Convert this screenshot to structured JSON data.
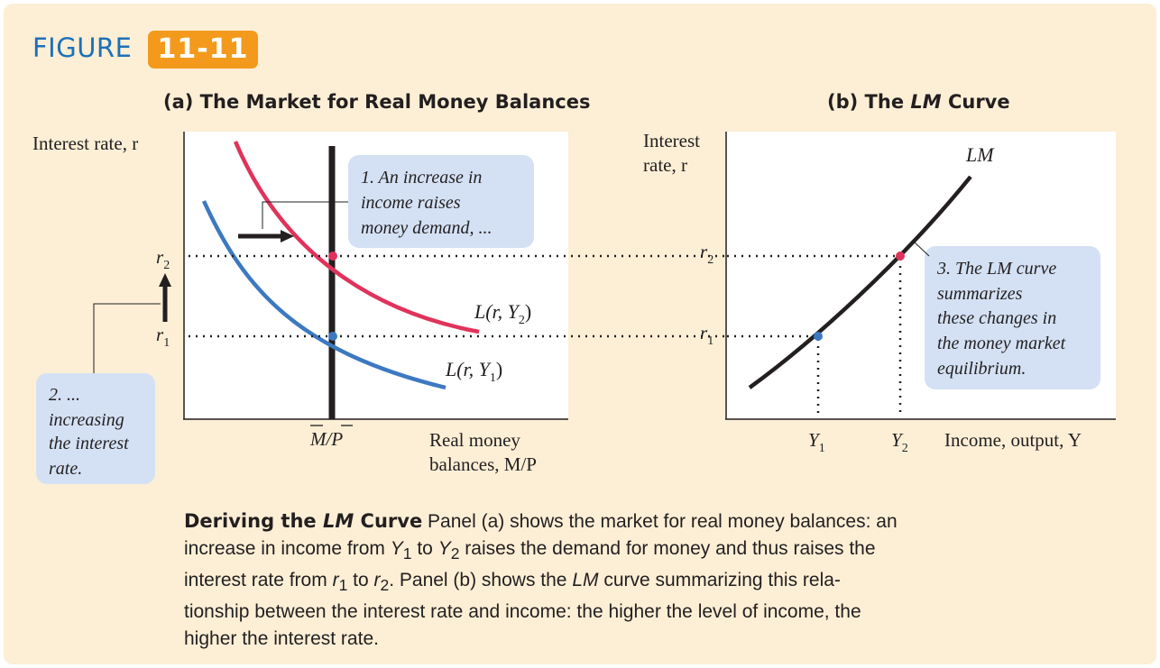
{
  "figure": {
    "label": "FIGURE",
    "number": "11-11"
  },
  "panel_a": {
    "title": "(a) The Market for Real Money Balances",
    "y_axis_label": "Interest rate, r",
    "x_axis_label_line1": "Real money",
    "x_axis_label_line2": "balances, M/P",
    "supply_tick_label": "M/P",
    "r2_label": "r",
    "r2_sub": "2",
    "r1_label": "r",
    "r1_sub": "1",
    "curve_y2_label": "L(r, Y",
    "curve_y2_sub": "2",
    "curve_y2_close": ")",
    "curve_y1_label": "L(r, Y",
    "curve_y1_sub": "1",
    "curve_y1_close": ")",
    "callout_1": [
      "1. An increase in",
      "income raises",
      "money demand, ..."
    ],
    "callout_2": [
      "2. ...",
      "increasing",
      "the interest",
      "rate."
    ]
  },
  "panel_b": {
    "title_part1": "(b) The ",
    "title_italic": "LM",
    "title_part2": " Curve",
    "y_axis_label_line1": "Interest",
    "y_axis_label_line2": "rate, r",
    "x_axis_label": "Income, output, Y",
    "curve_label": "LM",
    "r2_label": "r",
    "r2_sub": "2",
    "r1_label": "r",
    "r1_sub": "1",
    "y1_label": "Y",
    "y1_sub": "1",
    "y2_label": "Y",
    "y2_sub": "2",
    "callout_3": [
      "3. The LM curve",
      "summarizes",
      "these changes in",
      "the money market",
      "equilibrium."
    ]
  },
  "colors": {
    "page_background": "#fcefd6",
    "figure_word": "#1d70b7",
    "figure_badge": "#f39a1c",
    "demand_y2": "#e0335a",
    "demand_y1": "#3c79c1",
    "callout_fill": "#d4e1f4",
    "curve_black": "#231f20"
  },
  "caption": {
    "lead": "Deriving the LM Curve",
    "text": "Panel (a) shows the market for real money balances: an increase in income from Y1 to Y2 raises the demand for money and thus raises the interest rate from r1 to r2. Panel (b) shows the LM curve summarizing this relationship between the interest rate and income: the higher the level of income, the higher the interest rate."
  },
  "caption_display": {
    "lead_a": "Deriving the ",
    "lead_b": "LM",
    "lead_c": " Curve",
    "l1": " Panel (a) shows the market for real money balances: an",
    "l2a": "increase in income from ",
    "l2b": " to ",
    "l2c": " raises the demand for money and thus raises the",
    "l3a": "interest rate from ",
    "l3b": " to ",
    "l3c": ". Panel (b) shows the ",
    "l3d": " curve summarizing this rela-",
    "l4": "tionship between the interest rate and income: the higher the level of income, the",
    "l5": "higher the interest rate.",
    "Y": "Y",
    "r": "r",
    "s1": "1",
    "s2": "2",
    "LM": "LM"
  }
}
